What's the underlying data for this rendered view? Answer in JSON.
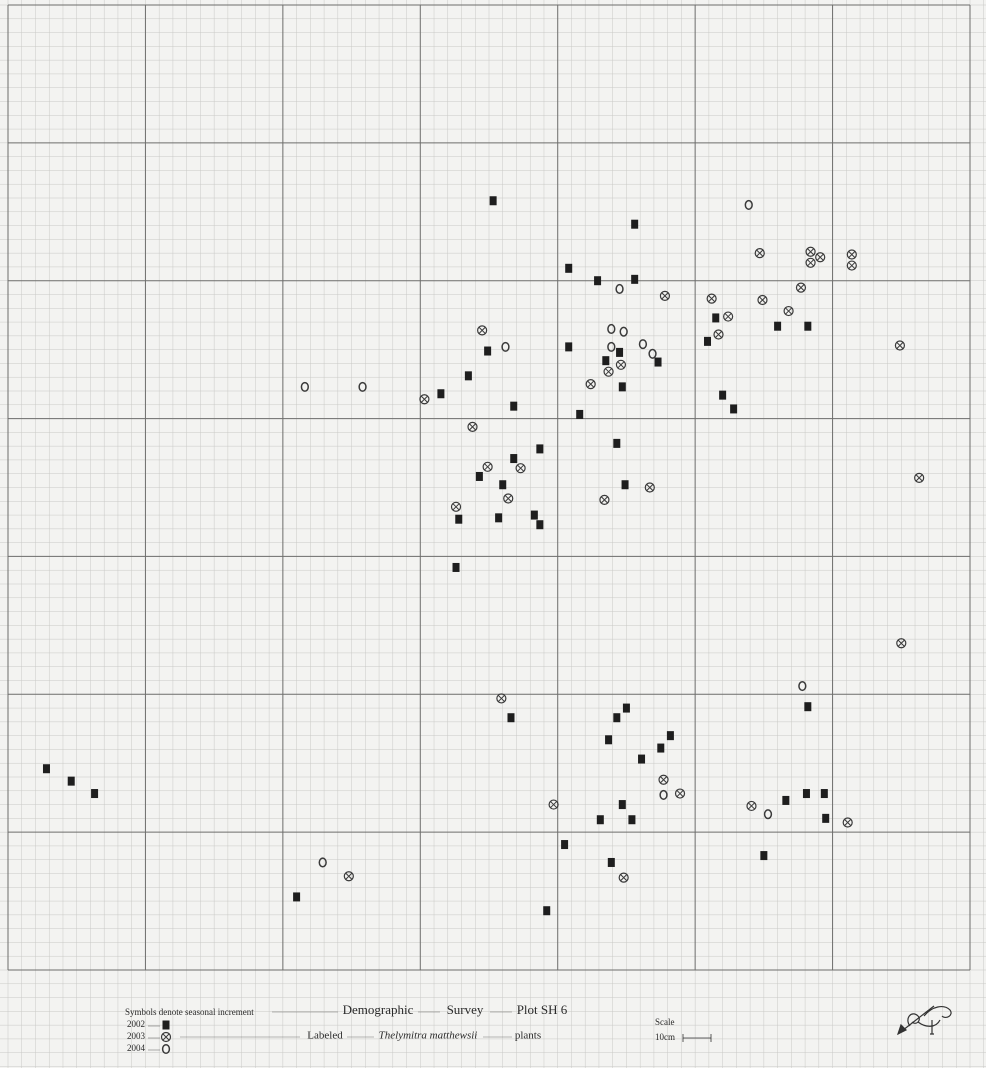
{
  "chart_data": {
    "type": "scatter",
    "xlim": [
      0,
      70
    ],
    "ylim": [
      0,
      70
    ],
    "grid": true,
    "legend_title": "Symbols denote seasonal increment",
    "title_parts": [
      "Demographic",
      "Survey",
      "Plot SH 6"
    ],
    "subtitle_parts": [
      "Labeled",
      "Thelymitra matthewsii",
      "plants"
    ],
    "scale_label": "Scale",
    "scale_unit": "10cm",
    "series": [
      {
        "name": "2002",
        "marker": "square",
        "color": "#1e1e1e",
        "x": [
          35.3,
          45.6,
          40.8,
          42.9,
          45.6,
          34.9,
          40.8,
          33.5,
          31.5,
          36.8,
          41.6,
          44.3,
          38.7,
          36.8,
          34.3,
          36.0,
          44.9,
          32.8,
          35.7,
          38.3,
          38.7,
          32.6,
          43.5,
          44.5,
          44.7,
          47.3,
          51.5,
          50.9,
          52.0,
          52.8,
          56.0,
          58.2,
          58.2,
          36.6,
          45.0,
          44.3,
          43.7,
          48.2,
          47.5,
          46.1,
          44.7,
          43.1,
          45.4,
          40.5,
          43.9,
          39.2,
          21.0,
          56.6,
          58.1,
          59.4,
          59.5,
          55.0,
          2.8,
          4.6,
          6.3
        ],
        "values": [
          55.8,
          54.1,
          50.9,
          50.0,
          50.1,
          44.9,
          45.2,
          43.1,
          41.8,
          40.9,
          40.3,
          38.2,
          37.8,
          37.1,
          35.8,
          35.2,
          35.2,
          32.7,
          32.8,
          33.0,
          32.3,
          29.2,
          44.2,
          44.8,
          42.3,
          44.1,
          47.3,
          45.6,
          41.7,
          40.7,
          46.7,
          46.7,
          19.1,
          18.3,
          19.0,
          18.3,
          16.7,
          17.0,
          16.1,
          15.3,
          12.0,
          10.9,
          10.9,
          9.1,
          7.8,
          4.3,
          5.3,
          12.3,
          12.8,
          12.8,
          11.0,
          8.3,
          14.6,
          13.7,
          12.8
        ]
      },
      {
        "name": "2003",
        "marker": "circle-x",
        "color": "#3a3a3a",
        "x": [
          34.5,
          47.8,
          51.2,
          52.4,
          54.9,
          51.7,
          56.8,
          57.7,
          58.4,
          58.4,
          59.1,
          61.4,
          61.4,
          54.7,
          30.3,
          42.4,
          43.7,
          44.6,
          33.8,
          34.9,
          37.3,
          36.4,
          32.6,
          43.4,
          46.7,
          64.9,
          66.3,
          65.0,
          35.9,
          47.7,
          48.9,
          39.7,
          54.1,
          61.1,
          44.8,
          24.8
        ],
        "values": [
          46.4,
          48.9,
          48.7,
          47.4,
          48.6,
          46.1,
          47.8,
          49.5,
          52.1,
          51.3,
          51.7,
          51.9,
          51.1,
          52.0,
          41.4,
          42.5,
          43.4,
          43.9,
          39.4,
          36.5,
          36.4,
          34.2,
          33.6,
          34.1,
          35.0,
          45.3,
          35.7,
          23.7,
          19.7,
          13.8,
          12.8,
          12.0,
          11.9,
          10.7,
          6.7,
          6.8
        ]
      },
      {
        "name": "2004",
        "marker": "ring",
        "color": "#3a3a3a",
        "x": [
          53.9,
          44.5,
          36.2,
          43.9,
          44.8,
          43.9,
          46.2,
          46.9,
          21.6,
          25.8,
          57.8,
          47.7,
          55.3,
          22.9
        ],
        "values": [
          55.5,
          49.4,
          45.2,
          46.5,
          46.3,
          45.2,
          45.4,
          44.7,
          42.3,
          42.3,
          20.6,
          12.7,
          11.3,
          7.8
        ]
      }
    ]
  }
}
